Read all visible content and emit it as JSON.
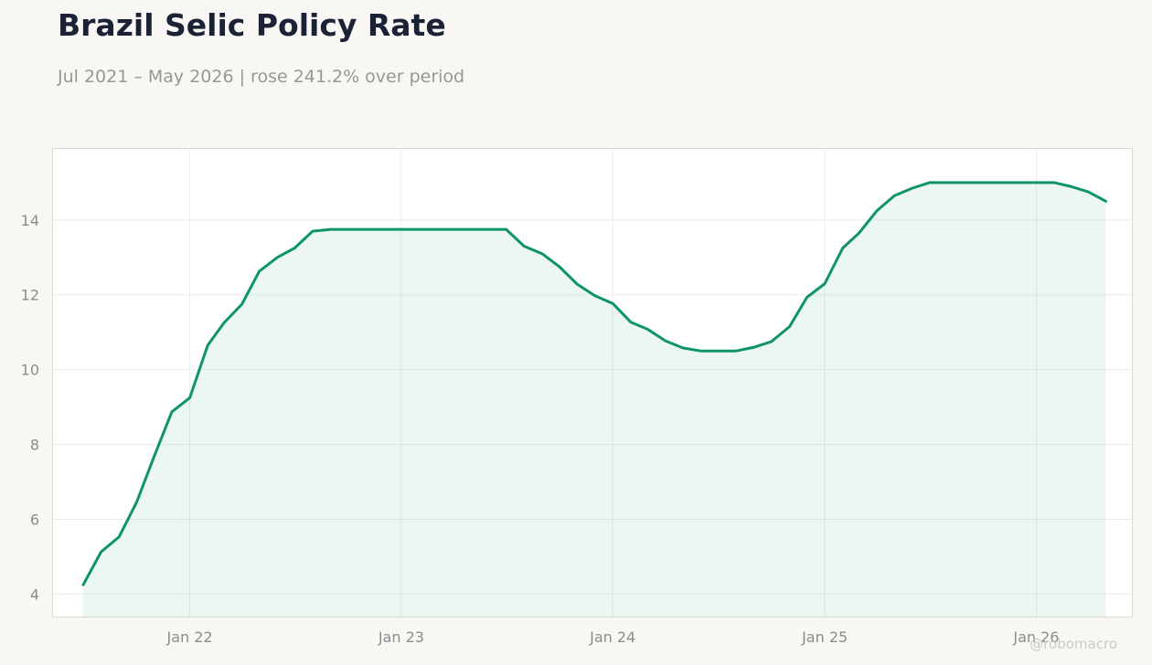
{
  "header": {
    "title": "Brazil Selic Policy Rate",
    "subtitle": "Jul 2021 – May 2026 | rose 241.2% over period"
  },
  "watermark": "@robomacro",
  "colors": {
    "line": "#0e9467",
    "fill": "#0e9467",
    "background": "#f8f7f4",
    "plot_background": "#ffffff",
    "grid": "#ececec",
    "title": "#1b2235",
    "muted": "#979797"
  },
  "chart_data": {
    "type": "area",
    "title": "Brazil Selic Policy Rate",
    "subtitle": "Jul 2021 – May 2026 | rose 241.2% over period",
    "xlabel": "",
    "ylabel": "",
    "x_range": [
      "2021-05-10",
      "2026-06-15"
    ],
    "ylim": [
      3.4,
      15.9
    ],
    "yticks": [
      4,
      6,
      8,
      10,
      12,
      14
    ],
    "xticks": [
      {
        "date": "2022-01-01",
        "label": "Jan 22"
      },
      {
        "date": "2023-01-01",
        "label": "Jan 23"
      },
      {
        "date": "2024-01-01",
        "label": "Jan 24"
      },
      {
        "date": "2025-01-01",
        "label": "Jan 25"
      },
      {
        "date": "2026-01-01",
        "label": "Jan 26"
      }
    ],
    "grid": true,
    "legend": "none",
    "series": [
      {
        "points": [
          [
            "2021-07-01",
            4.25
          ],
          [
            "2021-08-01",
            5.13
          ],
          [
            "2021-09-01",
            5.53
          ],
          [
            "2021-10-01",
            6.45
          ],
          [
            "2021-11-01",
            7.7
          ],
          [
            "2021-12-01",
            8.87
          ],
          [
            "2022-01-01",
            9.25
          ],
          [
            "2022-02-01",
            10.65
          ],
          [
            "2022-03-01",
            11.25
          ],
          [
            "2022-04-01",
            11.75
          ],
          [
            "2022-05-01",
            12.63
          ],
          [
            "2022-06-01",
            13.0
          ],
          [
            "2022-07-01",
            13.25
          ],
          [
            "2022-08-01",
            13.7
          ],
          [
            "2022-09-01",
            13.75
          ],
          [
            "2022-10-01",
            13.75
          ],
          [
            "2022-11-01",
            13.75
          ],
          [
            "2022-12-01",
            13.75
          ],
          [
            "2023-01-01",
            13.75
          ],
          [
            "2023-02-01",
            13.75
          ],
          [
            "2023-03-01",
            13.75
          ],
          [
            "2023-04-01",
            13.75
          ],
          [
            "2023-05-01",
            13.75
          ],
          [
            "2023-06-01",
            13.75
          ],
          [
            "2023-07-01",
            13.75
          ],
          [
            "2023-08-01",
            13.3
          ],
          [
            "2023-09-01",
            13.1
          ],
          [
            "2023-10-01",
            12.75
          ],
          [
            "2023-11-01",
            12.28
          ],
          [
            "2023-12-01",
            11.98
          ],
          [
            "2024-01-01",
            11.77
          ],
          [
            "2024-02-01",
            11.27
          ],
          [
            "2024-03-01",
            11.08
          ],
          [
            "2024-04-01",
            10.77
          ],
          [
            "2024-05-01",
            10.58
          ],
          [
            "2024-06-01",
            10.5
          ],
          [
            "2024-07-01",
            10.5
          ],
          [
            "2024-08-01",
            10.5
          ],
          [
            "2024-09-01",
            10.6
          ],
          [
            "2024-10-01",
            10.75
          ],
          [
            "2024-11-01",
            11.15
          ],
          [
            "2024-12-01",
            11.93
          ],
          [
            "2025-01-01",
            12.3
          ],
          [
            "2025-02-01",
            13.25
          ],
          [
            "2025-03-01",
            13.65
          ],
          [
            "2025-04-01",
            14.25
          ],
          [
            "2025-05-01",
            14.65
          ],
          [
            "2025-06-01",
            14.85
          ],
          [
            "2025-07-01",
            15.0
          ],
          [
            "2025-08-01",
            15.0
          ],
          [
            "2025-09-01",
            15.0
          ],
          [
            "2025-10-01",
            15.0
          ],
          [
            "2025-11-01",
            15.0
          ],
          [
            "2025-12-01",
            15.0
          ],
          [
            "2026-01-01",
            15.0
          ],
          [
            "2026-02-01",
            15.0
          ],
          [
            "2026-03-01",
            14.9
          ],
          [
            "2026-04-01",
            14.75
          ],
          [
            "2026-05-01",
            14.5
          ]
        ]
      }
    ]
  }
}
